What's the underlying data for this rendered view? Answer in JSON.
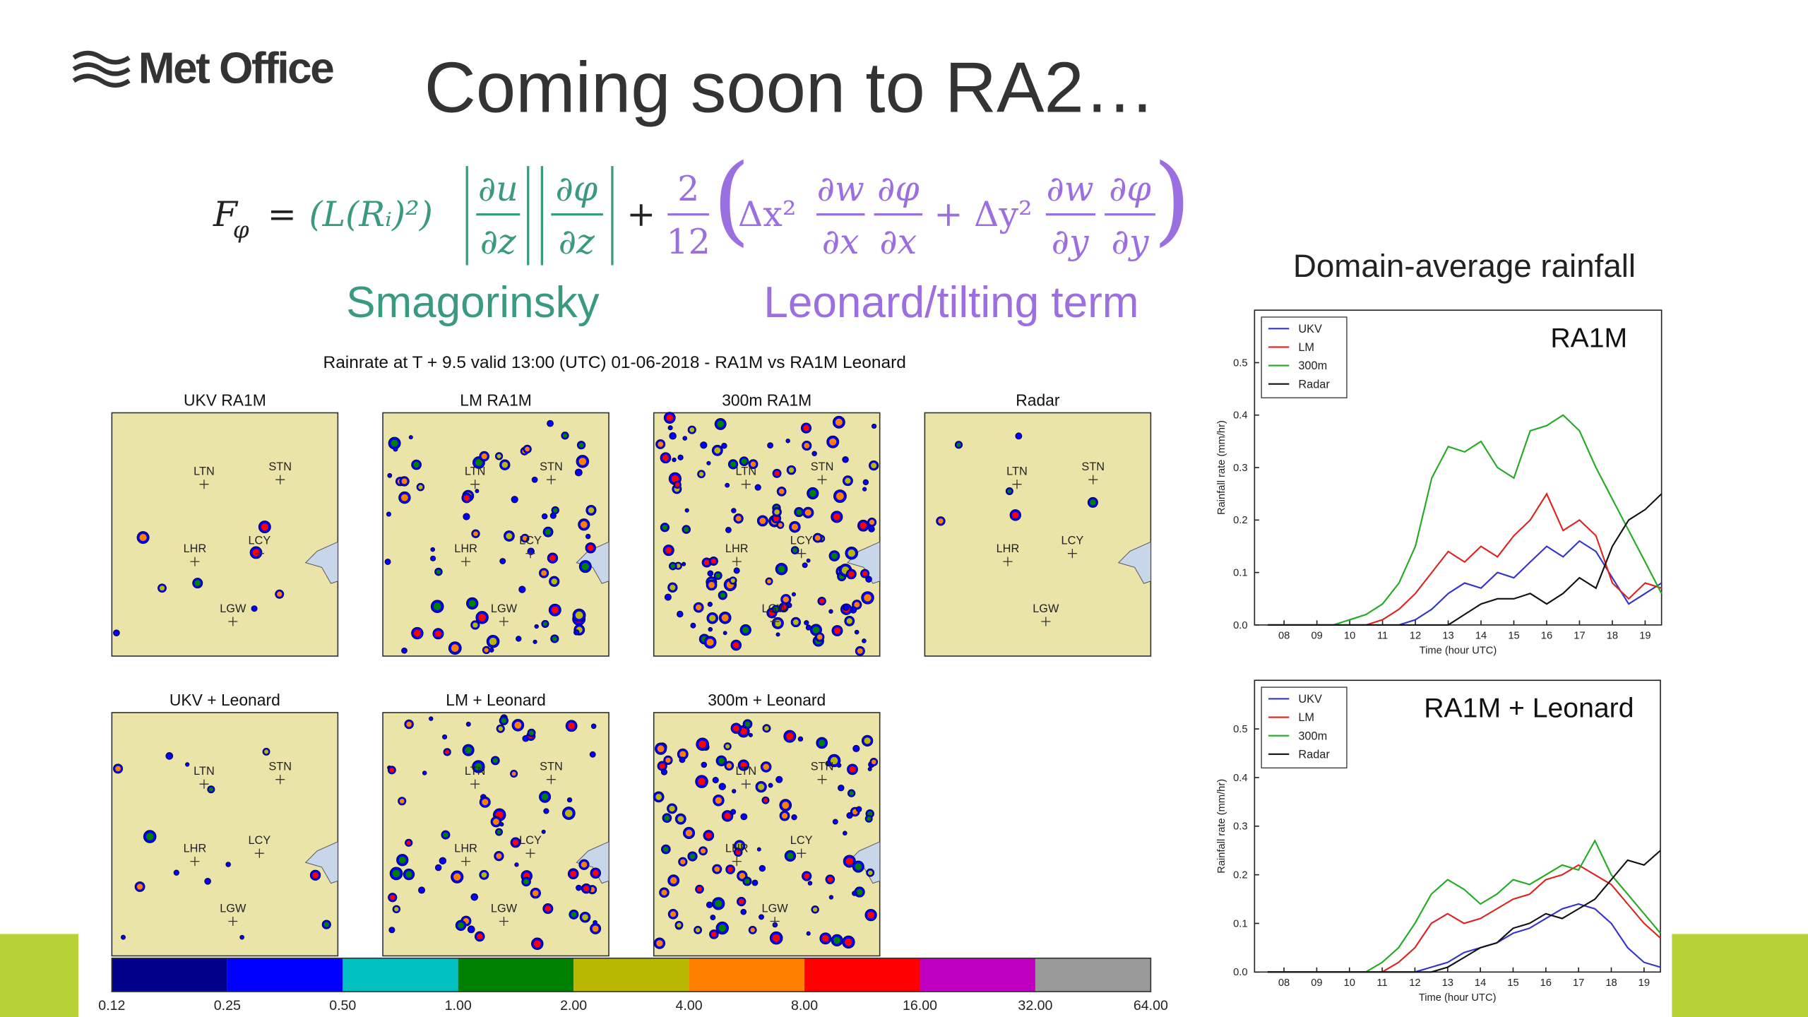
{
  "header": {
    "logo": "Met Office",
    "title": "Coming soon to RA2…"
  },
  "equation": {
    "lhs": "F",
    "lhs_sub": "φ",
    "equals": "=",
    "smag_prefix": "(L(Rᵢ)²)",
    "smag_fracs": [
      {
        "num": "∂u",
        "den": "∂z"
      },
      {
        "num": "∂φ",
        "den": "∂z"
      }
    ],
    "plus": "+",
    "coeff": {
      "num": "2",
      "den": "12"
    },
    "open": "(",
    "close": ")",
    "leonard_terms": [
      {
        "prefix": "Δx²",
        "fracs": [
          {
            "num": "∂w",
            "den": "∂x"
          },
          {
            "num": "∂φ",
            "den": "∂x"
          }
        ]
      },
      {
        "prefix": "+ Δy²",
        "fracs": [
          {
            "num": "∂w",
            "den": "∂y"
          },
          {
            "num": "∂φ",
            "den": "∂y"
          }
        ]
      }
    ]
  },
  "equation_labels": {
    "smagorinsky": "Smagorinsky",
    "leonard": "Leonard/tilting term"
  },
  "maps": {
    "title": "Rainrate at T + 9.5 valid 13:00 (UTC) 01-06-2018 - RA1M vs RA1M Leonard",
    "panels": [
      "UKV RA1M",
      "LM RA1M",
      "300m RA1M",
      "Radar",
      "UKV + Leonard",
      "LM + Leonard",
      "300m + Leonard"
    ],
    "stations": [
      "LTN",
      "STN",
      "LHR",
      "LCY",
      "LGW"
    ],
    "colorbar": {
      "colors": [
        "#00008b",
        "#0000ff",
        "#00c0c0",
        "#008000",
        "#b8b800",
        "#ff8000",
        "#ff0000",
        "#c000c0",
        "#999999"
      ],
      "ticks": [
        {
          "value": 0.12,
          "label": "0.12"
        },
        {
          "value": 0.25,
          "label": "0.25"
        },
        {
          "value": 0.5,
          "label": "0.50"
        },
        {
          "value": 1,
          "label": "1.00"
        },
        {
          "value": 2,
          "label": "2.00"
        },
        {
          "value": 4,
          "label": "4.00"
        },
        {
          "value": 8,
          "label": "8.00"
        },
        {
          "value": 16,
          "label": "16.00"
        },
        {
          "value": 32,
          "label": "32.00"
        },
        {
          "value": 64,
          "label": "64.00"
        }
      ]
    }
  },
  "rainfall_title": "Domain-average rainfall",
  "chart_data": [
    {
      "type": "line",
      "title": "RA1M",
      "xlabel": "Time (hour UTC)",
      "ylabel": "Rainfall rate (mm/hr)",
      "x": [
        7.5,
        8,
        8.5,
        9,
        9.5,
        10,
        10.5,
        11,
        11.5,
        12,
        12.5,
        13,
        13.5,
        14,
        14.5,
        15,
        15.5,
        16,
        16.5,
        17,
        17.5,
        18,
        18.5,
        19,
        19.5
      ],
      "xlim": [
        7.1,
        19.5
      ],
      "ylim": [
        0,
        0.6
      ],
      "xticks": [
        {
          "value": 8,
          "label": "08"
        },
        {
          "value": 9,
          "label": "09"
        },
        10,
        11,
        12,
        13,
        14,
        15,
        16,
        17,
        18,
        19
      ],
      "yticks": [
        {
          "value": 0,
          "label": "0.0"
        },
        {
          "value": 0.1,
          "label": "0.1"
        },
        {
          "value": 0.2,
          "label": "0.2"
        },
        {
          "value": 0.3,
          "label": "0.3"
        },
        {
          "value": 0.4,
          "label": "0.4"
        },
        {
          "value": 0.5,
          "label": "0.5"
        }
      ],
      "legend": "upper left",
      "series": [
        {
          "name": "UKV",
          "color": "#3333cc",
          "values": [
            0,
            0,
            0,
            0,
            0,
            0,
            0,
            0,
            0,
            0.01,
            0.03,
            0.06,
            0.08,
            0.07,
            0.1,
            0.09,
            0.12,
            0.15,
            0.13,
            0.16,
            0.14,
            0.09,
            0.04,
            0.06,
            0.08
          ]
        },
        {
          "name": "LM",
          "color": "#dd2222",
          "values": [
            0,
            0,
            0,
            0,
            0,
            0,
            0,
            0.01,
            0.03,
            0.06,
            0.1,
            0.14,
            0.12,
            0.15,
            0.13,
            0.17,
            0.2,
            0.25,
            0.18,
            0.2,
            0.17,
            0.08,
            0.05,
            0.08,
            0.07
          ]
        },
        {
          "name": "300m",
          "color": "#22aa22",
          "values": [
            0,
            0,
            0,
            0,
            0,
            0.01,
            0.02,
            0.04,
            0.08,
            0.15,
            0.28,
            0.34,
            0.33,
            0.35,
            0.3,
            0.28,
            0.37,
            0.38,
            0.4,
            0.37,
            0.3,
            0.24,
            0.18,
            0.12,
            0.06
          ]
        },
        {
          "name": "Radar",
          "color": "#111111",
          "values": [
            0,
            0,
            0,
            0,
            0,
            0,
            0,
            0,
            0,
            0,
            0,
            0,
            0.02,
            0.04,
            0.05,
            0.05,
            0.06,
            0.04,
            0.06,
            0.09,
            0.07,
            0.15,
            0.2,
            0.22,
            0.25
          ]
        }
      ]
    },
    {
      "type": "line",
      "title": "RA1M + Leonard",
      "xlabel": "Time (hour UTC)",
      "ylabel": "Rainfall rate (mm/hr)",
      "x": [
        7.5,
        8,
        8.5,
        9,
        9.5,
        10,
        10.5,
        11,
        11.5,
        12,
        12.5,
        13,
        13.5,
        14,
        14.5,
        15,
        15.5,
        16,
        16.5,
        17,
        17.5,
        18,
        18.5,
        19,
        19.5
      ],
      "xlim": [
        7.1,
        19.5
      ],
      "ylim": [
        0,
        0.6
      ],
      "xticks": [
        {
          "value": 8,
          "label": "08"
        },
        {
          "value": 9,
          "label": "09"
        },
        10,
        11,
        12,
        13,
        14,
        15,
        16,
        17,
        18,
        19
      ],
      "yticks": [
        {
          "value": 0,
          "label": "0.0"
        },
        {
          "value": 0.1,
          "label": "0.1"
        },
        {
          "value": 0.2,
          "label": "0.2"
        },
        {
          "value": 0.3,
          "label": "0.3"
        },
        {
          "value": 0.4,
          "label": "0.4"
        },
        {
          "value": 0.5,
          "label": "0.5"
        }
      ],
      "legend": "upper left",
      "series": [
        {
          "name": "UKV",
          "color": "#3333cc",
          "values": [
            0,
            0,
            0,
            0,
            0,
            0,
            0,
            0,
            0,
            0,
            0.01,
            0.02,
            0.04,
            0.05,
            0.06,
            0.08,
            0.09,
            0.11,
            0.13,
            0.14,
            0.13,
            0.1,
            0.05,
            0.02,
            0.01
          ]
        },
        {
          "name": "LM",
          "color": "#dd2222",
          "values": [
            0,
            0,
            0,
            0,
            0,
            0,
            0,
            0,
            0.02,
            0.05,
            0.1,
            0.12,
            0.1,
            0.11,
            0.13,
            0.15,
            0.16,
            0.19,
            0.2,
            0.22,
            0.2,
            0.18,
            0.14,
            0.1,
            0.07
          ]
        },
        {
          "name": "300m",
          "color": "#22aa22",
          "values": [
            0,
            0,
            0,
            0,
            0,
            0,
            0,
            0.02,
            0.05,
            0.1,
            0.16,
            0.19,
            0.17,
            0.14,
            0.16,
            0.19,
            0.18,
            0.2,
            0.22,
            0.21,
            0.27,
            0.2,
            0.16,
            0.12,
            0.08
          ]
        },
        {
          "name": "Radar",
          "color": "#111111",
          "values": [
            0,
            0,
            0,
            0,
            0,
            0,
            0,
            0,
            0,
            0,
            0,
            0.01,
            0.03,
            0.05,
            0.06,
            0.09,
            0.1,
            0.12,
            0.11,
            0.13,
            0.15,
            0.19,
            0.23,
            0.22,
            0.25
          ]
        }
      ]
    }
  ]
}
